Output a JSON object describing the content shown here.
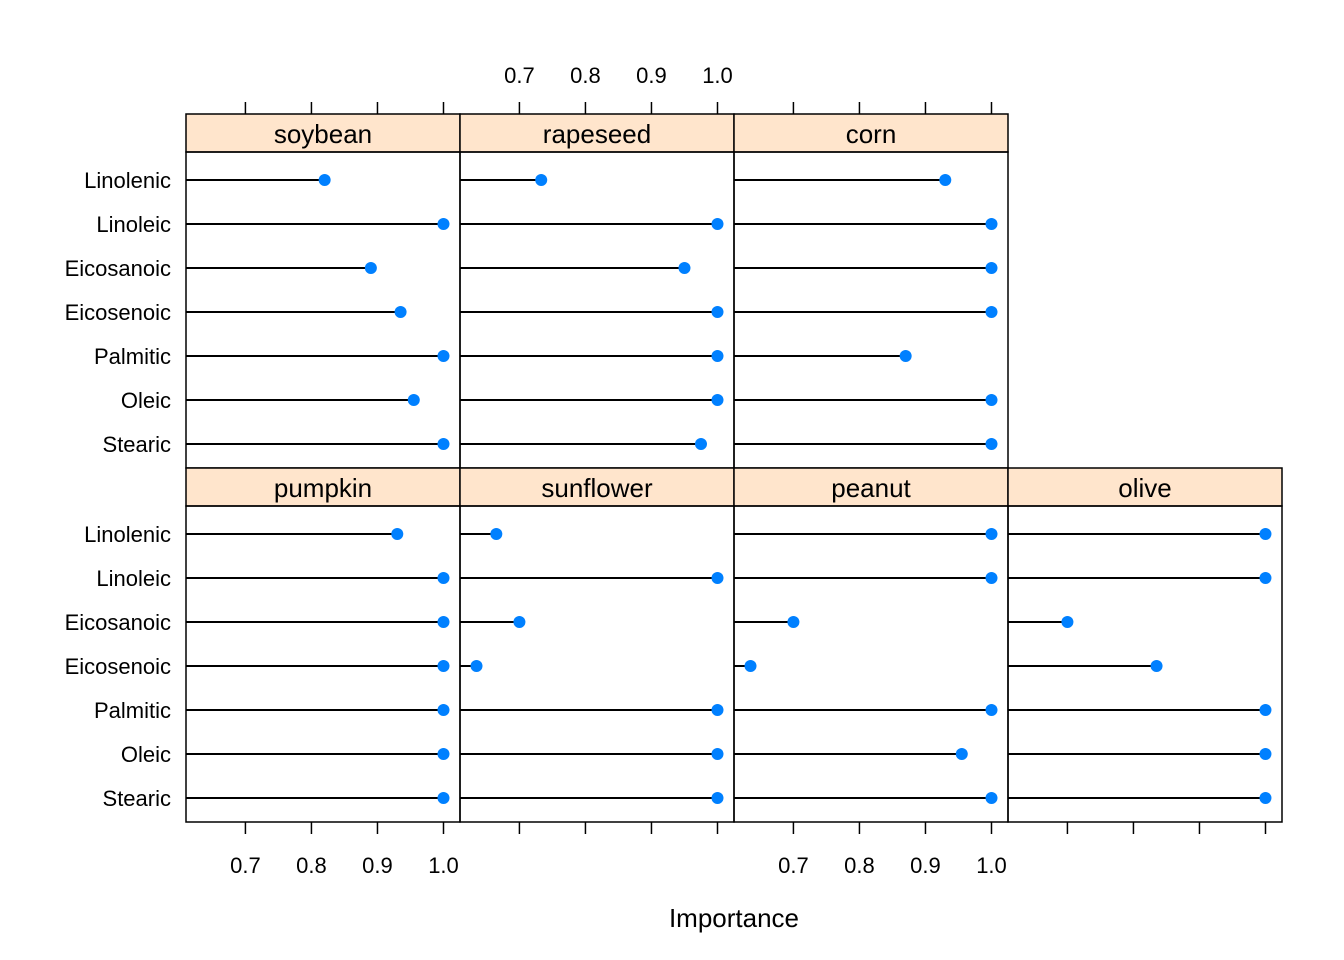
{
  "chart_data": {
    "type": "dotplot",
    "xlabel": "Importance",
    "xlim": [
      0.61,
      1.025
    ],
    "xticks": [
      0.7,
      0.8,
      0.9,
      1.0
    ],
    "xtick_labels": [
      "0.7",
      "0.8",
      "0.9",
      "1.0"
    ],
    "strip_color": "#ffe5cc",
    "point_color": "#0080ff",
    "categories": [
      "Linolenic",
      "Linoleic",
      "Eicosanoic",
      "Eicosenoic",
      "Palmitic",
      "Oleic",
      "Stearic"
    ],
    "series": [
      {
        "name": "soybean",
        "values": [
          0.82,
          1.0,
          0.89,
          0.935,
          1.0,
          0.955,
          1.0
        ]
      },
      {
        "name": "rapeseed",
        "values": [
          0.733,
          1.0,
          0.95,
          1.0,
          1.0,
          1.0,
          0.975
        ]
      },
      {
        "name": "corn",
        "values": [
          0.93,
          1.0,
          1.0,
          1.0,
          0.87,
          1.0,
          1.0
        ]
      },
      {
        "name": "pumpkin",
        "values": [
          0.93,
          1.0,
          1.0,
          1.0,
          1.0,
          1.0,
          1.0
        ]
      },
      {
        "name": "sunflower",
        "values": [
          0.665,
          1.0,
          0.7,
          0.635,
          1.0,
          1.0,
          1.0
        ]
      },
      {
        "name": "peanut",
        "values": [
          1.0,
          1.0,
          0.7,
          0.635,
          1.0,
          0.955,
          1.0
        ]
      },
      {
        "name": "olive",
        "values": [
          1.0,
          1.0,
          0.7,
          0.835,
          1.0,
          1.0,
          1.0
        ]
      }
    ]
  }
}
